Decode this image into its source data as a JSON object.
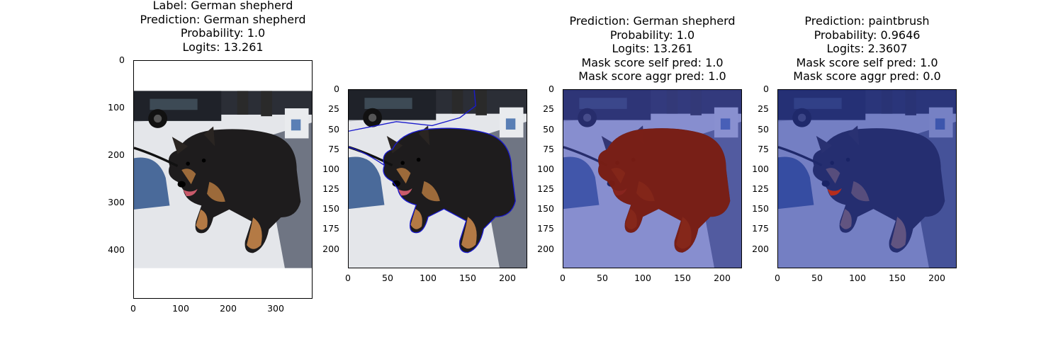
{
  "panels": [
    {
      "title_lines": [
        "Label: German shepherd",
        "Prediction: German shepherd",
        "Probability: 1.0",
        "Logits: 13.261"
      ],
      "y_ticks": [
        "0",
        "100",
        "200",
        "300",
        "400"
      ],
      "x_ticks": [
        "0",
        "100",
        "200",
        "300"
      ],
      "image": "original-photo",
      "overlay": "none"
    },
    {
      "title_lines": [],
      "y_ticks": [
        "0",
        "25",
        "50",
        "75",
        "100",
        "125",
        "150",
        "175",
        "200"
      ],
      "x_ticks": [
        "0",
        "50",
        "100",
        "150",
        "200"
      ],
      "image": "resized-photo",
      "overlay": "blue-contour",
      "overlay_color": "#1a1acc"
    },
    {
      "title_lines": [
        "Prediction: German shepherd",
        "Probability: 1.0",
        "Logits: 13.261",
        "Mask score self pred: 1.0",
        "Mask score aggr pred: 1.0"
      ],
      "y_ticks": [
        "0",
        "25",
        "50",
        "75",
        "100",
        "125",
        "150",
        "175",
        "200"
      ],
      "x_ticks": [
        "0",
        "50",
        "100",
        "150",
        "200"
      ],
      "image": "resized-photo",
      "overlay": "red-dog-mask-blue-background",
      "overlay_colors": {
        "mask": "#8b1a00",
        "background": "#3a46b8"
      }
    },
    {
      "title_lines": [
        "Prediction: paintbrush",
        "Probability: 0.9646",
        "Logits: 2.3607",
        "Mask score self pred: 1.0",
        "Mask score aggr pred: 0.0"
      ],
      "y_ticks": [
        "0",
        "25",
        "50",
        "75",
        "100",
        "125",
        "150",
        "175",
        "200"
      ],
      "x_ticks": [
        "0",
        "50",
        "100",
        "150",
        "200"
      ],
      "image": "resized-photo",
      "overlay": "blue-everywhere-red-tongue",
      "overlay_colors": {
        "mask": "#c02a10",
        "background": "#2a3aa8"
      }
    }
  ]
}
